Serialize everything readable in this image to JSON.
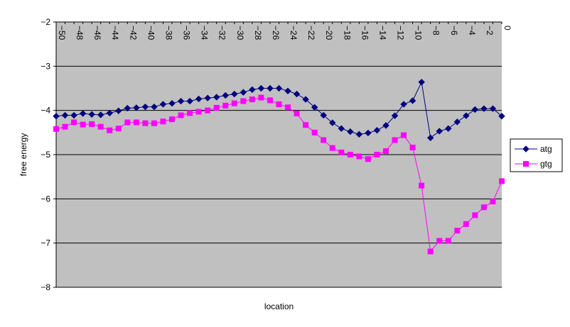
{
  "chart_data": {
    "type": "line",
    "xlabel": "location",
    "ylabel": "free energy",
    "xlim": [
      -50,
      0
    ],
    "ylim": [
      -8,
      -2
    ],
    "x_ticks": [
      -50,
      -48,
      -46,
      -44,
      -42,
      -40,
      -38,
      -36,
      -34,
      -32,
      -30,
      -28,
      -26,
      -24,
      -22,
      -20,
      -18,
      -16,
      -14,
      -12,
      -10,
      -8,
      -6,
      -4,
      -2,
      0
    ],
    "y_ticks": [
      -2,
      -3,
      -4,
      -5,
      -6,
      -7,
      -8
    ],
    "x_axis_position": "top",
    "grid": "horizontal",
    "legend_position": "right",
    "plot_background": "#c0c0c0",
    "x": [
      -50,
      -49,
      -48,
      -47,
      -46,
      -45,
      -44,
      -43,
      -42,
      -41,
      -40,
      -39,
      -38,
      -37,
      -36,
      -35,
      -34,
      -33,
      -32,
      -31,
      -30,
      -29,
      -28,
      -27,
      -26,
      -25,
      -24,
      -23,
      -22,
      -21,
      -20,
      -19,
      -18,
      -17,
      -16,
      -15,
      -14,
      -13,
      -12,
      -11,
      -10,
      -9,
      -8,
      -7,
      -6,
      -5,
      -4,
      -3,
      -2,
      -1,
      0
    ],
    "series": [
      {
        "name": "atg",
        "color": "#000080",
        "marker": "diamond",
        "values": [
          -4.13,
          -4.11,
          -4.11,
          -4.07,
          -4.09,
          -4.1,
          -4.06,
          -4.01,
          -3.95,
          -3.94,
          -3.92,
          -3.92,
          -3.86,
          -3.84,
          -3.79,
          -3.79,
          -3.74,
          -3.72,
          -3.7,
          -3.66,
          -3.63,
          -3.59,
          -3.53,
          -3.5,
          -3.5,
          -3.5,
          -3.56,
          -3.63,
          -3.75,
          -3.93,
          -4.11,
          -4.28,
          -4.41,
          -4.48,
          -4.54,
          -4.51,
          -4.45,
          -4.34,
          -4.12,
          -3.86,
          -3.78,
          -3.36,
          -4.62,
          -4.47,
          -4.41,
          -4.26,
          -4.12,
          -3.98,
          -3.96,
          -3.96,
          -4.13
        ]
      },
      {
        "name": "gtg",
        "color": "#ff00ff",
        "marker": "square",
        "values": [
          -4.42,
          -4.37,
          -4.27,
          -4.32,
          -4.31,
          -4.37,
          -4.45,
          -4.41,
          -4.27,
          -4.27,
          -4.29,
          -4.29,
          -4.25,
          -4.2,
          -4.11,
          -4.06,
          -4.03,
          -4.0,
          -3.94,
          -3.89,
          -3.84,
          -3.79,
          -3.75,
          -3.71,
          -3.77,
          -3.86,
          -3.93,
          -4.07,
          -4.33,
          -4.5,
          -4.67,
          -4.85,
          -4.95,
          -5.0,
          -5.04,
          -5.1,
          -5.0,
          -4.92,
          -4.67,
          -4.56,
          -4.84,
          -5.7,
          -7.19,
          -6.95,
          -6.95,
          -6.72,
          -6.57,
          -6.37,
          -6.19,
          -6.06,
          -5.6
        ]
      }
    ]
  }
}
